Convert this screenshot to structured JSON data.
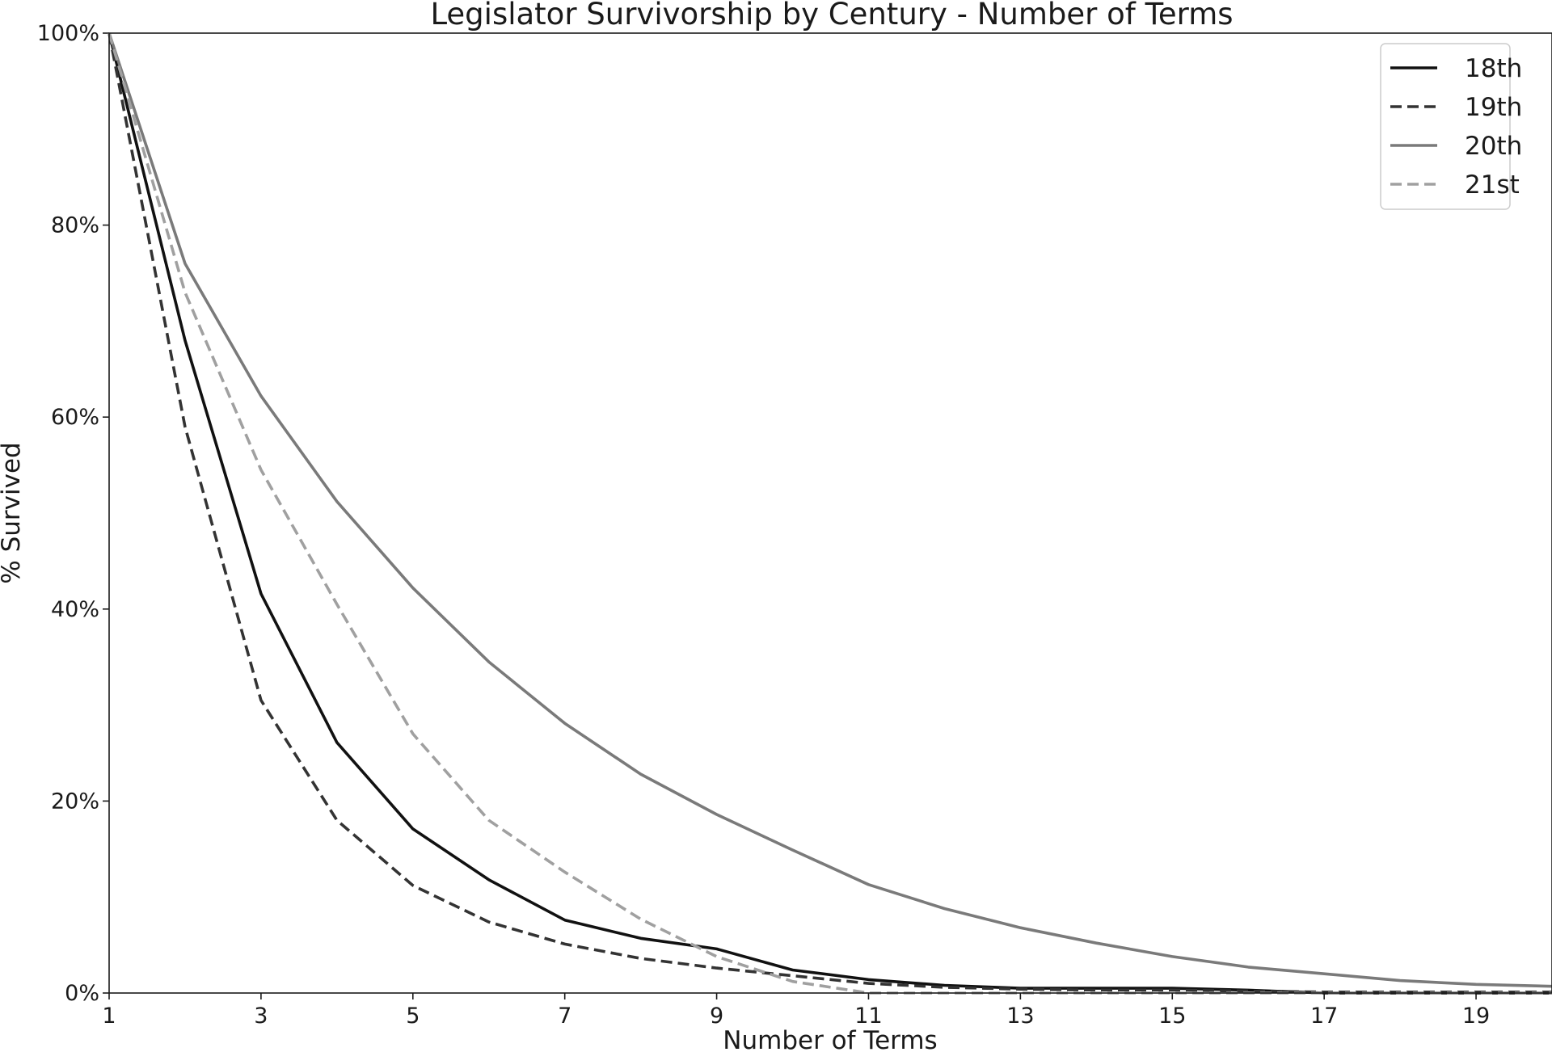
{
  "chart_data": {
    "type": "line",
    "title": "Legislator Survivorship by Century - Number of Terms",
    "xlabel": "Number of Terms",
    "ylabel": "% Survived",
    "xlim": [
      1,
      20
    ],
    "ylim": [
      0,
      1
    ],
    "x_ticks": [
      1,
      3,
      5,
      7,
      9,
      11,
      13,
      15,
      17,
      19
    ],
    "y_ticks": [
      0,
      0.2,
      0.4,
      0.6,
      0.8,
      1.0
    ],
    "y_tick_labels": [
      "0%",
      "20%",
      "40%",
      "60%",
      "80%",
      "100%"
    ],
    "grid": false,
    "legend_position": "top-right",
    "x": [
      1,
      2,
      3,
      4,
      5,
      6,
      7,
      8,
      9,
      10,
      11,
      12,
      13,
      14,
      15,
      16,
      17,
      18,
      19,
      20
    ],
    "series": [
      {
        "name": "18th",
        "color": "#111111",
        "dashed": false,
        "values": [
          1.0,
          0.68,
          0.416,
          0.261,
          0.171,
          0.118,
          0.076,
          0.057,
          0.046,
          0.024,
          0.014,
          0.008,
          0.005,
          0.005,
          0.005,
          0.003,
          0.0,
          0.0,
          0.0,
          0.0
        ]
      },
      {
        "name": "19th",
        "color": "#333333",
        "dashed": true,
        "values": [
          1.0,
          0.59,
          0.305,
          0.18,
          0.112,
          0.074,
          0.051,
          0.036,
          0.026,
          0.018,
          0.01,
          0.006,
          0.004,
          0.003,
          0.003,
          0.002,
          0.001,
          0.001,
          0.001,
          0.001
        ]
      },
      {
        "name": "20th",
        "color": "#7a7a7a",
        "dashed": false,
        "values": [
          1.0,
          0.76,
          0.622,
          0.512,
          0.422,
          0.345,
          0.281,
          0.228,
          0.186,
          0.149,
          0.113,
          0.088,
          0.068,
          0.052,
          0.038,
          0.027,
          0.02,
          0.013,
          0.009,
          0.007
        ]
      },
      {
        "name": "21st",
        "color": "#a0a0a0",
        "dashed": true,
        "values": [
          1.0,
          0.73,
          0.545,
          0.405,
          0.27,
          0.18,
          0.126,
          0.077,
          0.038,
          0.012,
          0.0,
          0.0,
          0.0,
          0.0,
          0.0,
          0.0,
          0.0,
          0.0,
          0.0,
          0.0
        ]
      }
    ]
  }
}
